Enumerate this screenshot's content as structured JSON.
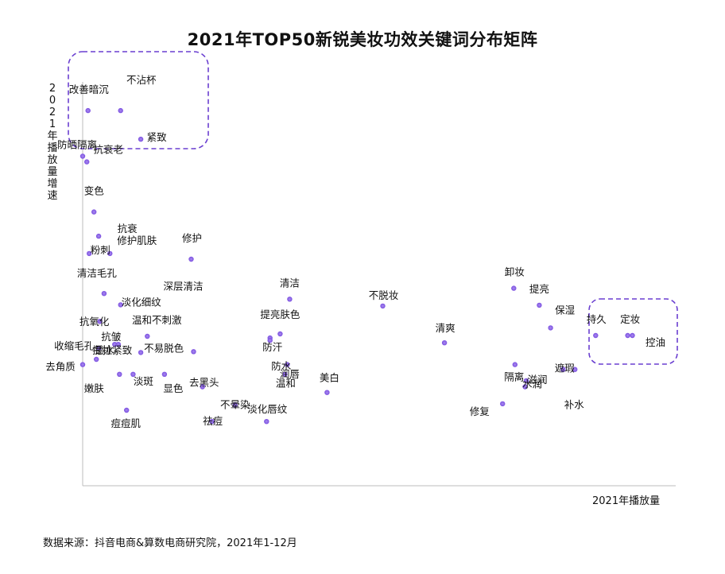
{
  "title": "2021年TOP50新锐美妆功效关键词分布矩阵",
  "source": "数据来源：抖音电商&算数电商研究院，2021年1-12月",
  "colors": {
    "point": "#7b4fe0",
    "point_glow": "#a98cf0",
    "highlight_box": "#6a3fd0",
    "axis": "#bdbdbd"
  },
  "chart_data": {
    "type": "scatter",
    "title": "2021年TOP50新锐美妆功效关键词分布矩阵",
    "xlabel": "2021年播放量",
    "ylabel": "2021年播放量增速",
    "xlim": [
      0,
      100
    ],
    "ylim": [
      0,
      100
    ],
    "grid": false,
    "point_ticks": false,
    "points": [
      {
        "label": "不沾杯",
        "x": 6.4,
        "y": 92.9,
        "highlighted": true
      },
      {
        "label": "改善暗沉",
        "x": 0.9,
        "y": 92.9,
        "highlighted": true
      },
      {
        "label": "紧致",
        "x": 9.8,
        "y": 85.8,
        "highlighted": true
      },
      {
        "label": "防晒隔离",
        "x": 0.0,
        "y": 81.6,
        "highlighted": true
      },
      {
        "label": "抗衰老",
        "x": 0.7,
        "y": 80.2
      },
      {
        "label": "变色",
        "x": 1.9,
        "y": 67.8
      },
      {
        "label": "抗衰",
        "x": 2.7,
        "y": 61.8
      },
      {
        "label": "粉刺",
        "x": 1.1,
        "y": 57.5
      },
      {
        "label": "修护肌肤",
        "x": 4.6,
        "y": 57.5
      },
      {
        "label": "修护",
        "x": 18.3,
        "y": 56.1
      },
      {
        "label": "清洁毛孔",
        "x": 3.6,
        "y": 47.6
      },
      {
        "label": "淡化细纹",
        "x": 6.4,
        "y": 44.8
      },
      {
        "label": "抗氧化",
        "x": 2.9,
        "y": 40.7
      },
      {
        "label": "锁水",
        "x": 5.4,
        "y": 35.0
      },
      {
        "label": "抗皱",
        "x": 6.0,
        "y": 35.0
      },
      {
        "label": "温和不刺激",
        "x": 10.9,
        "y": 37.0
      },
      {
        "label": "收缩毛孔",
        "x": 2.7,
        "y": 34.0
      },
      {
        "label": "提拉紧致",
        "x": 2.3,
        "y": 31.3
      },
      {
        "label": "不易脱色",
        "x": 9.8,
        "y": 33.0
      },
      {
        "label": "去角质",
        "x": 0.0,
        "y": 30.0
      },
      {
        "label": "嫩肤",
        "x": 6.2,
        "y": 27.6
      },
      {
        "label": "淡斑",
        "x": 8.5,
        "y": 27.6
      },
      {
        "label": "显色",
        "x": 13.8,
        "y": 27.6
      },
      {
        "label": "深层清洁",
        "x": 18.7,
        "y": 33.2
      },
      {
        "label": "去黑头",
        "x": 20.2,
        "y": 24.5
      },
      {
        "label": "防汗",
        "x": 31.6,
        "y": 36.6
      },
      {
        "label": "防水",
        "x": 31.6,
        "y": 36.0
      },
      {
        "label": "提亮肤色",
        "x": 33.3,
        "y": 37.6
      },
      {
        "label": "温和",
        "x": 34.5,
        "y": 30.0
      },
      {
        "label": "润唇",
        "x": 34.1,
        "y": 27.6
      },
      {
        "label": "不晕染",
        "x": 25.7,
        "y": 20.0
      },
      {
        "label": "祛痘",
        "x": 21.8,
        "y": 15.9
      },
      {
        "label": "淡化唇纹",
        "x": 31.0,
        "y": 15.9
      },
      {
        "label": "痘痘肌",
        "x": 7.4,
        "y": 18.7
      },
      {
        "label": "清洁",
        "x": 34.9,
        "y": 46.2
      },
      {
        "label": "美白",
        "x": 41.2,
        "y": 23.1
      },
      {
        "label": "不脱妆",
        "x": 50.6,
        "y": 44.5
      },
      {
        "label": "清爽",
        "x": 61.0,
        "y": 35.4
      },
      {
        "label": "卸妆",
        "x": 72.7,
        "y": 48.9
      },
      {
        "label": "提亮",
        "x": 77.0,
        "y": 44.7
      },
      {
        "label": "保湿",
        "x": 78.9,
        "y": 39.1
      },
      {
        "label": "隔离",
        "x": 72.9,
        "y": 30.0
      },
      {
        "label": "滋润",
        "x": 74.8,
        "y": 26.0
      },
      {
        "label": "水润",
        "x": 74.6,
        "y": 24.5
      },
      {
        "label": "修复",
        "x": 70.8,
        "y": 20.3
      },
      {
        "label": "遮瑕",
        "x": 81.0,
        "y": 28.8
      },
      {
        "label": "补水",
        "x": 83.0,
        "y": 28.8
      },
      {
        "label": "持久",
        "x": 86.5,
        "y": 37.2,
        "highlighted": true
      },
      {
        "label": "定妆",
        "x": 91.9,
        "y": 37.2,
        "highlighted": true
      },
      {
        "label": "控油",
        "x": 92.7,
        "y": 37.2,
        "highlighted": true
      }
    ]
  }
}
